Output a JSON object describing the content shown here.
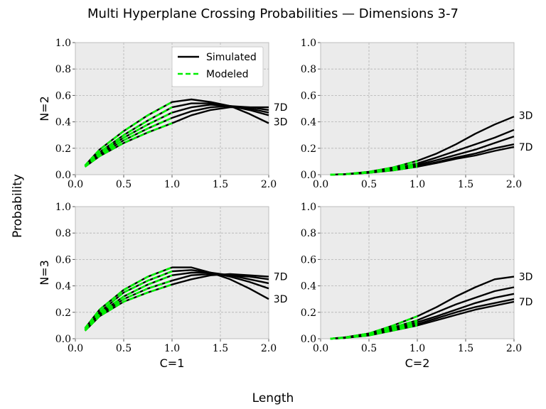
{
  "suptitle": "Multi Hyperplane Crossing Probabilities — Dimensions 3-7",
  "supylabel": "Probability",
  "supxlabel": "Length",
  "legend": {
    "simulated": "Simulated",
    "modeled": "Modeled"
  },
  "colors": {
    "simulated": "#000000",
    "modeled": "#00ee00",
    "panel_bg": "#ebebeb",
    "grid": "#b3b3b3"
  },
  "chart_data": [
    {
      "type": "line",
      "row_label": "N=2",
      "col_label": "",
      "xlim": [
        0,
        2
      ],
      "ylim": [
        0,
        1
      ],
      "xticks": [
        "0.0",
        "0.5",
        "1.0",
        "1.5",
        "2.0"
      ],
      "yticks": [
        "0.0",
        "0.2",
        "0.4",
        "0.6",
        "0.8",
        "1.0"
      ],
      "grid": true,
      "legend_position": "top-right",
      "annotations": [
        {
          "text": "7D",
          "x": 2.02,
          "y": 0.51
        },
        {
          "text": "3D",
          "x": 2.02,
          "y": 0.4
        }
      ],
      "x": [
        0.1,
        0.25,
        0.5,
        0.75,
        1.0,
        1.2,
        1.4,
        1.6,
        1.8,
        2.0
      ],
      "series": [
        {
          "values": [
            0.07,
            0.19,
            0.33,
            0.45,
            0.55,
            0.57,
            0.55,
            0.52,
            0.46,
            0.39
          ]
        },
        {
          "values": [
            0.07,
            0.17,
            0.3,
            0.41,
            0.51,
            0.54,
            0.54,
            0.52,
            0.49,
            0.45
          ]
        },
        {
          "values": [
            0.06,
            0.16,
            0.28,
            0.38,
            0.47,
            0.51,
            0.53,
            0.52,
            0.5,
            0.47
          ]
        },
        {
          "values": [
            0.06,
            0.15,
            0.26,
            0.35,
            0.43,
            0.48,
            0.51,
            0.52,
            0.51,
            0.49
          ]
        },
        {
          "values": [
            0.06,
            0.14,
            0.24,
            0.32,
            0.39,
            0.45,
            0.49,
            0.51,
            0.51,
            0.51
          ]
        }
      ]
    },
    {
      "type": "line",
      "row_label": "",
      "col_label": "",
      "xlim": [
        0,
        2
      ],
      "ylim": [
        0,
        1
      ],
      "xticks": [
        "0.0",
        "0.5",
        "1.0",
        "1.5",
        "2.0"
      ],
      "yticks": [
        "0.0",
        "0.2",
        "0.4",
        "0.6",
        "0.8",
        "1.0"
      ],
      "grid": true,
      "annotations": [
        {
          "text": "3D",
          "x": 2.02,
          "y": 0.45
        },
        {
          "text": "7D",
          "x": 2.02,
          "y": 0.21
        }
      ],
      "x": [
        0.1,
        0.25,
        0.5,
        0.75,
        1.0,
        1.2,
        1.4,
        1.6,
        1.8,
        2.0
      ],
      "series": [
        {
          "values": [
            0.0,
            0.004,
            0.022,
            0.055,
            0.105,
            0.16,
            0.23,
            0.31,
            0.38,
            0.44
          ]
        },
        {
          "values": [
            0.0,
            0.004,
            0.019,
            0.045,
            0.085,
            0.13,
            0.18,
            0.23,
            0.28,
            0.34
          ]
        },
        {
          "values": [
            0.0,
            0.003,
            0.017,
            0.04,
            0.075,
            0.11,
            0.15,
            0.19,
            0.24,
            0.29
          ]
        },
        {
          "values": [
            0.0,
            0.003,
            0.015,
            0.036,
            0.065,
            0.095,
            0.13,
            0.16,
            0.2,
            0.23
          ]
        },
        {
          "values": [
            0.0,
            0.003,
            0.014,
            0.033,
            0.06,
            0.088,
            0.12,
            0.145,
            0.18,
            0.21
          ]
        }
      ]
    },
    {
      "type": "line",
      "row_label": "N=3",
      "col_label": "C=1",
      "xlim": [
        0,
        2
      ],
      "ylim": [
        0,
        1
      ],
      "xticks": [
        "0.0",
        "0.5",
        "1.0",
        "1.5",
        "2.0"
      ],
      "yticks": [
        "0.0",
        "0.2",
        "0.4",
        "0.6",
        "0.8",
        "1.0"
      ],
      "grid": true,
      "annotations": [
        {
          "text": "7D",
          "x": 2.02,
          "y": 0.47
        },
        {
          "text": "3D",
          "x": 2.02,
          "y": 0.3
        }
      ],
      "x": [
        0.1,
        0.25,
        0.5,
        0.75,
        1.0,
        1.2,
        1.4,
        1.6,
        1.8,
        2.0
      ],
      "series": [
        {
          "values": [
            0.08,
            0.22,
            0.37,
            0.47,
            0.54,
            0.54,
            0.5,
            0.45,
            0.38,
            0.3
          ]
        },
        {
          "values": [
            0.07,
            0.2,
            0.35,
            0.44,
            0.51,
            0.52,
            0.5,
            0.47,
            0.43,
            0.38
          ]
        },
        {
          "values": [
            0.07,
            0.19,
            0.32,
            0.41,
            0.48,
            0.5,
            0.5,
            0.48,
            0.45,
            0.42
          ]
        },
        {
          "values": [
            0.07,
            0.18,
            0.3,
            0.38,
            0.44,
            0.48,
            0.49,
            0.48,
            0.47,
            0.45
          ]
        },
        {
          "values": [
            0.06,
            0.17,
            0.28,
            0.35,
            0.41,
            0.45,
            0.48,
            0.49,
            0.48,
            0.47
          ]
        }
      ]
    },
    {
      "type": "line",
      "row_label": "",
      "col_label": "C=2",
      "xlim": [
        0,
        2
      ],
      "ylim": [
        0,
        1
      ],
      "xticks": [
        "0.0",
        "0.5",
        "1.0",
        "1.5",
        "2.0"
      ],
      "yticks": [
        "0.0",
        "0.2",
        "0.4",
        "0.6",
        "0.8",
        "1.0"
      ],
      "grid": true,
      "annotations": [
        {
          "text": "3D",
          "x": 2.02,
          "y": 0.47
        },
        {
          "text": "7D",
          "x": 2.02,
          "y": 0.28
        }
      ],
      "x": [
        0.1,
        0.25,
        0.5,
        0.75,
        1.0,
        1.2,
        1.4,
        1.6,
        1.8,
        2.0
      ],
      "series": [
        {
          "values": [
            0.0,
            0.01,
            0.04,
            0.1,
            0.17,
            0.24,
            0.32,
            0.39,
            0.45,
            0.47
          ]
        },
        {
          "values": [
            0.0,
            0.008,
            0.035,
            0.085,
            0.14,
            0.2,
            0.26,
            0.31,
            0.36,
            0.39
          ]
        },
        {
          "values": [
            0.0,
            0.007,
            0.03,
            0.075,
            0.125,
            0.17,
            0.22,
            0.27,
            0.31,
            0.34
          ]
        },
        {
          "values": [
            0.0,
            0.006,
            0.028,
            0.068,
            0.11,
            0.155,
            0.2,
            0.24,
            0.27,
            0.3
          ]
        },
        {
          "values": [
            0.0,
            0.006,
            0.025,
            0.062,
            0.1,
            0.14,
            0.18,
            0.22,
            0.25,
            0.28
          ]
        }
      ]
    }
  ]
}
